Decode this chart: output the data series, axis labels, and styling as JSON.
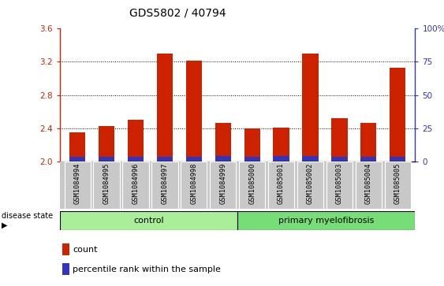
{
  "title": "GDS5802 / 40794",
  "samples": [
    "GSM1084994",
    "GSM1084995",
    "GSM1084996",
    "GSM1084997",
    "GSM1084998",
    "GSM1084999",
    "GSM1085000",
    "GSM1085001",
    "GSM1085002",
    "GSM1085003",
    "GSM1085004",
    "GSM1085005"
  ],
  "count_values": [
    2.35,
    2.43,
    2.5,
    3.3,
    3.21,
    2.47,
    2.4,
    2.41,
    3.3,
    2.52,
    2.47,
    3.13
  ],
  "percentile_heights": [
    0.055,
    0.055,
    0.055,
    0.055,
    0.06,
    0.065,
    0.055,
    0.065,
    0.065,
    0.055,
    0.055,
    0.06
  ],
  "ylim_lo": 2.0,
  "ylim_hi": 3.6,
  "yticks": [
    2.0,
    2.4,
    2.8,
    3.2,
    3.6
  ],
  "right_yticks": [
    0,
    25,
    50,
    75,
    100
  ],
  "bar_color": "#cc2200",
  "percentile_color": "#3333bb",
  "tick_area_bg": "#c8c8c8",
  "control_bg": "#aaee99",
  "disease_bg": "#77dd77",
  "control_label": "control",
  "disease_label": "primary myelofibrosis",
  "n_control": 6,
  "n_disease": 6,
  "legend_count": "count",
  "legend_percentile": "percentile rank within the sample",
  "disease_state_label": "disease state",
  "bar_width": 0.55
}
